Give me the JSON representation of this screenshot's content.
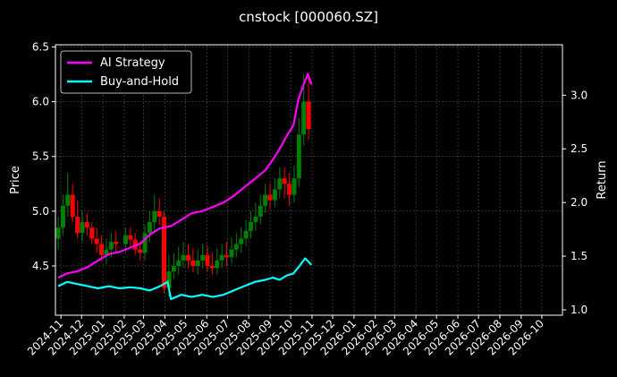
{
  "chart_data": {
    "type": "line",
    "title": "cnstock [000060.SZ]",
    "ylabel_left": "Price",
    "ylabel_right": "Return",
    "xlabel": "",
    "grid": true,
    "legend_position": "top-left",
    "x_ticks": [
      "2024-11",
      "2024-12",
      "2025-01",
      "2025-02",
      "2025-03",
      "2025-04",
      "2025-05",
      "2025-06",
      "2025-07",
      "2025-08",
      "2025-09",
      "2025-10",
      "2025-11",
      "2025-12",
      "2026-01",
      "2026-02",
      "2026-03",
      "2026-04",
      "2026-05",
      "2026-06",
      "2026-07",
      "2026-08",
      "2026-09",
      "2026-10"
    ],
    "x_range": [
      "2024-10-24",
      "2026-10-31"
    ],
    "y_left_ticks": [
      "4.5",
      "5.0",
      "5.5",
      "6.0",
      "6.5"
    ],
    "y_left_range": [
      4.05,
      6.52
    ],
    "y_right_ticks": [
      "1.0",
      "1.5",
      "2.0",
      "2.5",
      "3.0"
    ],
    "y_right_range": [
      0.95,
      3.47
    ],
    "price_candles": {
      "up_color": "#008000",
      "down_color": "#ff0000",
      "dates": [
        "2024-10-28",
        "2024-11-04",
        "2024-11-11",
        "2024-11-18",
        "2024-11-25",
        "2024-12-02",
        "2024-12-09",
        "2024-12-16",
        "2024-12-23",
        "2024-12-30",
        "2025-01-06",
        "2025-01-13",
        "2025-01-20",
        "2025-02-03",
        "2025-02-10",
        "2025-02-17",
        "2025-02-24",
        "2025-03-03",
        "2025-03-10",
        "2025-03-17",
        "2025-03-24",
        "2025-03-31",
        "2025-04-07",
        "2025-04-14",
        "2025-04-21",
        "2025-04-28",
        "2025-05-05",
        "2025-05-12",
        "2025-05-19",
        "2025-05-26",
        "2025-06-02",
        "2025-06-09",
        "2025-06-16",
        "2025-06-23",
        "2025-06-30",
        "2025-07-07",
        "2025-07-14",
        "2025-07-21",
        "2025-07-28",
        "2025-08-04",
        "2025-08-11",
        "2025-08-18",
        "2025-08-25",
        "2025-09-01",
        "2025-09-08",
        "2025-09-15",
        "2025-09-22",
        "2025-09-29",
        "2025-10-06",
        "2025-10-13",
        "2025-10-20",
        "2025-10-27"
      ],
      "open": [
        4.75,
        4.85,
        5.05,
        5.15,
        4.95,
        4.8,
        4.9,
        4.85,
        4.75,
        4.7,
        4.6,
        4.65,
        4.72,
        4.7,
        4.78,
        4.74,
        4.65,
        4.62,
        4.8,
        4.9,
        5.0,
        4.95,
        4.3,
        4.45,
        4.5,
        4.55,
        4.6,
        4.55,
        4.5,
        4.55,
        4.6,
        4.5,
        4.48,
        4.55,
        4.6,
        4.58,
        4.65,
        4.7,
        4.75,
        4.82,
        4.9,
        4.95,
        5.05,
        5.15,
        5.1,
        5.2,
        5.3,
        5.25,
        5.15,
        5.3,
        5.7,
        6.0
      ],
      "close": [
        4.85,
        5.05,
        5.15,
        4.95,
        4.8,
        4.9,
        4.85,
        4.75,
        4.7,
        4.6,
        4.65,
        4.72,
        4.7,
        4.78,
        4.74,
        4.65,
        4.62,
        4.8,
        4.9,
        5.0,
        4.95,
        4.3,
        4.45,
        4.5,
        4.55,
        4.6,
        4.55,
        4.5,
        4.55,
        4.6,
        4.5,
        4.48,
        4.55,
        4.6,
        4.58,
        4.65,
        4.7,
        4.75,
        4.82,
        4.9,
        4.95,
        5.05,
        5.15,
        5.1,
        5.2,
        5.3,
        5.25,
        5.15,
        5.3,
        5.7,
        6.0,
        5.75
      ],
      "high": [
        4.95,
        5.15,
        5.35,
        5.25,
        5.1,
        5.0,
        4.98,
        4.9,
        4.85,
        4.78,
        4.75,
        4.8,
        4.82,
        4.85,
        4.85,
        4.8,
        4.72,
        4.88,
        5.0,
        5.15,
        5.12,
        5.0,
        4.6,
        4.62,
        4.68,
        4.72,
        4.7,
        4.66,
        4.65,
        4.7,
        4.68,
        4.62,
        4.66,
        4.7,
        4.72,
        4.76,
        4.8,
        4.85,
        4.92,
        5.0,
        5.08,
        5.15,
        5.25,
        5.25,
        5.3,
        5.4,
        5.4,
        5.35,
        5.42,
        5.85,
        6.25,
        6.25
      ],
      "low": [
        4.65,
        4.78,
        4.95,
        4.9,
        4.75,
        4.72,
        4.78,
        4.7,
        4.62,
        4.55,
        4.52,
        4.58,
        4.62,
        4.62,
        4.68,
        4.6,
        4.55,
        4.55,
        4.72,
        4.82,
        4.88,
        4.25,
        4.22,
        4.38,
        4.42,
        4.48,
        4.48,
        4.44,
        4.42,
        4.48,
        4.45,
        4.42,
        4.42,
        4.48,
        4.5,
        4.52,
        4.58,
        4.62,
        4.68,
        4.75,
        4.82,
        4.88,
        4.98,
        5.02,
        5.04,
        5.12,
        5.12,
        5.05,
        5.08,
        5.22,
        5.6,
        5.65
      ]
    },
    "series": [
      {
        "name": "AI Strategy",
        "color": "#ff00ff",
        "axis": "right",
        "x": [
          "2024-10-28",
          "2024-11-10",
          "2024-11-25",
          "2024-12-10",
          "2024-12-25",
          "2025-01-10",
          "2025-01-25",
          "2025-02-10",
          "2025-02-25",
          "2025-03-10",
          "2025-03-25",
          "2025-04-10",
          "2025-04-25",
          "2025-05-10",
          "2025-05-25",
          "2025-06-10",
          "2025-06-25",
          "2025-07-10",
          "2025-07-25",
          "2025-08-10",
          "2025-08-25",
          "2025-09-05",
          "2025-09-15",
          "2025-09-25",
          "2025-10-05",
          "2025-10-12",
          "2025-10-20",
          "2025-10-26",
          "2025-10-31"
        ],
        "values": [
          1.3,
          1.34,
          1.36,
          1.4,
          1.46,
          1.52,
          1.54,
          1.58,
          1.62,
          1.7,
          1.76,
          1.78,
          1.84,
          1.9,
          1.92,
          1.96,
          2.0,
          2.06,
          2.14,
          2.22,
          2.3,
          2.4,
          2.5,
          2.62,
          2.72,
          2.96,
          3.1,
          3.2,
          3.1
        ]
      },
      {
        "name": "Buy-and-Hold",
        "color": "#00ffff",
        "axis": "right",
        "x": [
          "2024-10-28",
          "2024-11-10",
          "2024-11-25",
          "2024-12-10",
          "2024-12-25",
          "2025-01-10",
          "2025-01-25",
          "2025-02-10",
          "2025-02-25",
          "2025-03-10",
          "2025-03-25",
          "2025-04-05",
          "2025-04-10",
          "2025-04-25",
          "2025-05-10",
          "2025-05-25",
          "2025-06-10",
          "2025-06-25",
          "2025-07-10",
          "2025-07-25",
          "2025-08-10",
          "2025-08-25",
          "2025-09-05",
          "2025-09-15",
          "2025-09-25",
          "2025-10-05",
          "2025-10-15",
          "2025-10-22",
          "2025-10-31"
        ],
        "values": [
          1.22,
          1.26,
          1.24,
          1.22,
          1.2,
          1.22,
          1.2,
          1.21,
          1.2,
          1.18,
          1.22,
          1.26,
          1.1,
          1.14,
          1.12,
          1.14,
          1.12,
          1.14,
          1.18,
          1.22,
          1.26,
          1.28,
          1.3,
          1.28,
          1.32,
          1.34,
          1.42,
          1.48,
          1.42
        ]
      }
    ]
  }
}
